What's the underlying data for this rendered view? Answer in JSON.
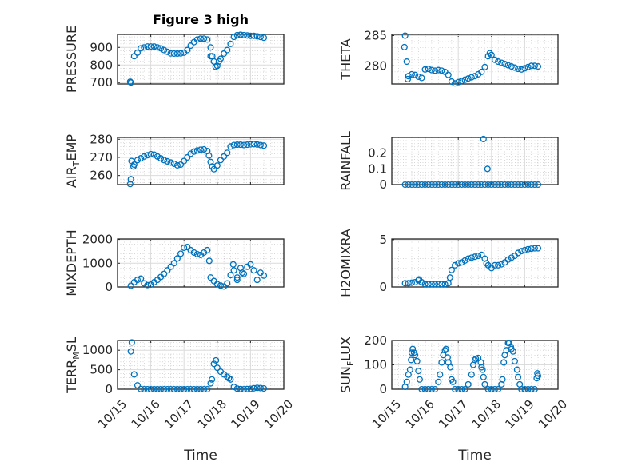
{
  "figure": {
    "title": "Figure 3 high",
    "xlabel_left": "Time",
    "xlabel_right": "Time"
  },
  "colors": {
    "marker": "#0072BD",
    "axes": "#262626",
    "grid": "#dcdcdc"
  },
  "chart_data": {
    "type": "scatter",
    "xlim": [
      0,
      5
    ],
    "xtick_values": [
      0,
      1,
      2,
      3,
      4,
      5
    ],
    "xtick_labels": [
      "10/15",
      "10/16",
      "10/17",
      "10/18",
      "10/19",
      "10/20"
    ],
    "x_unit": "days since 10/15",
    "x_days": [
      0.4,
      0.5,
      0.6,
      0.7,
      0.8,
      0.9,
      1.0,
      1.1,
      1.2,
      1.3,
      1.4,
      1.5,
      1.6,
      1.7,
      1.8,
      1.9,
      2.0,
      2.1,
      2.2,
      2.3,
      2.4,
      2.5,
      2.6,
      2.7,
      2.8,
      2.9,
      3.0,
      3.1,
      3.2,
      3.3,
      3.4,
      3.5,
      3.6,
      3.7,
      3.8,
      3.9,
      4.0,
      4.1,
      4.2,
      4.3,
      4.4
    ],
    "panels": [
      {
        "id": "pressure",
        "ylabel": {
          "main": "PRESSURE",
          "sub": "",
          "rest": ""
        },
        "ylim": [
          692,
          974
        ],
        "yticks": [
          700,
          800,
          900
        ],
        "y": [
          700,
          850,
          870,
          895,
          900,
          905,
          905,
          905,
          900,
          895,
          885,
          875,
          866,
          865,
          865,
          866,
          870,
          885,
          910,
          930,
          945,
          950,
          950,
          945,
          900,
          820,
          795,
          835,
          865,
          885,
          920,
          960,
          970,
          972,
          970,
          968,
          966,
          966,
          963,
          960,
          955
        ],
        "extra": [
          [
            0.38,
            705
          ],
          [
            2.8,
            850
          ],
          [
            2.85,
            850
          ],
          [
            2.95,
            790
          ],
          [
            3.05,
            820
          ]
        ]
      },
      {
        "id": "theta",
        "ylabel": {
          "main": "THETA",
          "sub": "",
          "rest": ""
        },
        "ylim": [
          277,
          285.2
        ],
        "yticks": [
          280,
          285
        ],
        "y": [
          285,
          278.3,
          278.6,
          278.5,
          278.2,
          278,
          279.4,
          279.5,
          279.3,
          279.2,
          279.3,
          279.2,
          279,
          278.5,
          277.4,
          277.1,
          277.3,
          277.5,
          277.7,
          277.9,
          278.1,
          278.3,
          278.6,
          279,
          279.8,
          281.6,
          281.8,
          281,
          280.7,
          280.5,
          280.3,
          280.1,
          279.9,
          279.7,
          279.5,
          279.4,
          279.6,
          279.8,
          280,
          280,
          279.9
        ],
        "extra": [
          [
            0.38,
            283.1
          ],
          [
            0.45,
            280.7
          ],
          [
            0.48,
            277.8
          ],
          [
            2.95,
            282.1
          ]
        ]
      },
      {
        "id": "air-temp",
        "ylabel": {
          "main": "AIR",
          "sub": "T",
          "rest": "EMP"
        },
        "ylim": [
          255,
          281
        ],
        "yticks": [
          260,
          270,
          280
        ],
        "y": [
          258,
          266,
          268.5,
          269.5,
          270.5,
          271.2,
          271.8,
          271.5,
          270.5,
          269.5,
          268.5,
          267.8,
          267.2,
          266.5,
          265.6,
          266,
          268,
          270,
          272,
          273.2,
          273.8,
          274.2,
          274.4,
          273.5,
          267.5,
          263.5,
          265.5,
          268.5,
          270.5,
          272.5,
          276,
          276.8,
          277,
          277,
          276.8,
          277,
          277.2,
          277.3,
          277.1,
          276.8,
          276.5
        ],
        "extra": [
          [
            0.38,
            255.3
          ],
          [
            0.42,
            268
          ],
          [
            0.48,
            265
          ],
          [
            2.75,
            271
          ],
          [
            2.85,
            265
          ]
        ]
      },
      {
        "id": "rainfall",
        "ylabel": {
          "main": "RAINFALL",
          "sub": "",
          "rest": ""
        },
        "ylim": [
          0,
          0.3
        ],
        "yticks": [
          0,
          0.1,
          0.2
        ],
        "y": [
          0,
          0,
          0,
          0,
          0,
          0,
          0,
          0,
          0,
          0,
          0,
          0,
          0,
          0,
          0,
          0,
          0,
          0,
          0,
          0,
          0,
          0,
          0,
          0,
          0,
          0,
          0,
          0,
          0,
          0,
          0,
          0,
          0,
          0,
          0,
          0,
          0,
          0,
          0,
          0,
          0
        ],
        "extra": [
          [
            2.76,
            0.29
          ],
          [
            2.88,
            0.1
          ]
        ]
      },
      {
        "id": "mixdepth",
        "ylabel": {
          "main": "MIXDEPTH",
          "sub": "",
          "rest": ""
        },
        "ylim": [
          0,
          2020
        ],
        "yticks": [
          0,
          1000,
          2000
        ],
        "y": [
          50,
          200,
          300,
          350,
          150,
          80,
          100,
          200,
          300,
          420,
          550,
          700,
          850,
          1000,
          1200,
          1400,
          1650,
          1680,
          1550,
          1450,
          1380,
          1350,
          1450,
          1550,
          400,
          250,
          120,
          60,
          20,
          150,
          500,
          700,
          400,
          800,
          550,
          850,
          950,
          700,
          300,
          600,
          480
        ],
        "extra": [
          [
            2.76,
            1100
          ],
          [
            3.48,
            950
          ],
          [
            3.6,
            300
          ],
          [
            3.75,
            600
          ]
        ]
      },
      {
        "id": "h2omixra",
        "ylabel": {
          "main": "H2OMIXRA",
          "sub": "",
          "rest": ""
        },
        "ylim": [
          0,
          5.08
        ],
        "yticks": [
          0,
          5
        ],
        "y": [
          0.4,
          0.4,
          0.45,
          0.5,
          0.7,
          0.5,
          0.3,
          0.3,
          0.3,
          0.3,
          0.3,
          0.3,
          0.3,
          0.4,
          1.8,
          2.3,
          2.5,
          2.6,
          2.8,
          3.0,
          3.1,
          3.2,
          3.3,
          3.4,
          3.0,
          2.3,
          2.0,
          2.3,
          2.3,
          2.4,
          2.6,
          2.9,
          3.1,
          3.3,
          3.6,
          3.8,
          3.9,
          4.0,
          4.05,
          4.1,
          4.1
        ],
        "extra": [
          [
            1.75,
            1.0
          ],
          [
            2.85,
            2.5
          ],
          [
            0.82,
            0.8
          ]
        ]
      },
      {
        "id": "terr-msl",
        "ylabel": {
          "main": "TERR",
          "sub": "M",
          "rest": "SL"
        },
        "ylim": [
          0,
          1250
        ],
        "yticks": [
          0,
          500,
          1000
        ],
        "y": [
          970,
          380,
          100,
          5,
          0,
          0,
          0,
          0,
          0,
          0,
          0,
          0,
          0,
          0,
          0,
          0,
          0,
          0,
          0,
          0,
          0,
          0,
          0,
          0,
          150,
          650,
          550,
          450,
          380,
          320,
          250,
          60,
          15,
          5,
          0,
          5,
          10,
          25,
          35,
          30,
          20
        ],
        "extra": [
          [
            0.43,
            1200
          ],
          [
            2.84,
            250
          ],
          [
            2.96,
            740
          ],
          [
            3.35,
            280
          ]
        ]
      },
      {
        "id": "sun-flux",
        "ylabel": {
          "main": "SUN",
          "sub": "F",
          "rest": "LUX"
        },
        "ylim": [
          0,
          200
        ],
        "yticks": [
          0,
          100,
          200
        ],
        "y": [
          10,
          60,
          150,
          140,
          75,
          0,
          0,
          0,
          0,
          0,
          30,
          110,
          160,
          110,
          40,
          0,
          0,
          0,
          0,
          20,
          60,
          120,
          128,
          90,
          20,
          0,
          0,
          0,
          0,
          20,
          140,
          190,
          165,
          115,
          50,
          0,
          0,
          0,
          0,
          0,
          55
        ],
        "extra": [
          [
            0.45,
            30
          ],
          [
            0.55,
            80
          ],
          [
            0.58,
            120
          ],
          [
            0.63,
            165
          ],
          [
            0.67,
            150
          ],
          [
            0.76,
            115
          ],
          [
            0.84,
            40
          ],
          [
            1.45,
            60
          ],
          [
            1.55,
            140
          ],
          [
            1.63,
            165
          ],
          [
            1.68,
            130
          ],
          [
            1.76,
            90
          ],
          [
            1.84,
            30
          ],
          [
            2.45,
            100
          ],
          [
            2.53,
            125
          ],
          [
            2.68,
            110
          ],
          [
            2.73,
            80
          ],
          [
            2.76,
            50
          ],
          [
            3.33,
            40
          ],
          [
            3.37,
            110
          ],
          [
            3.45,
            160
          ],
          [
            3.53,
            190
          ],
          [
            3.58,
            175
          ],
          [
            3.65,
            155
          ],
          [
            3.77,
            80
          ],
          [
            3.85,
            20
          ],
          [
            4.36,
            45
          ],
          [
            4.38,
            65
          ]
        ]
      }
    ]
  }
}
